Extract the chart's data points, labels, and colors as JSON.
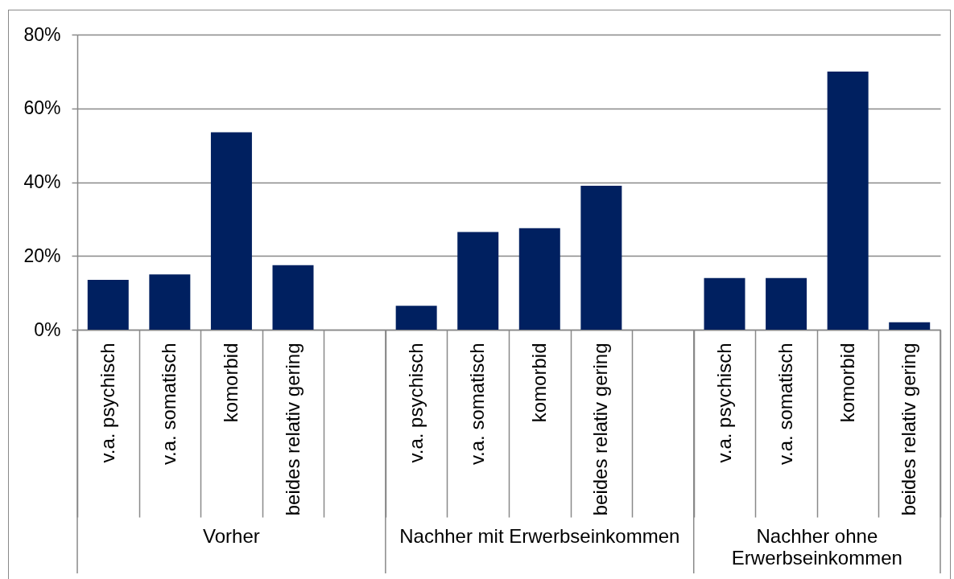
{
  "chart_data": {
    "type": "bar",
    "categories": [
      "v.a. psychisch",
      "v.a. somatisch",
      "komorbid",
      "beides relativ gering",
      null,
      "v.a. psychisch",
      "v.a. somatisch",
      "komorbid",
      "beides relativ gering",
      null,
      "v.a. psychisch",
      "v.a. somatisch",
      "komorbid",
      "beides relativ gering"
    ],
    "values": [
      13.5,
      15,
      53.5,
      17.5,
      null,
      6.5,
      26.5,
      27.5,
      39,
      null,
      14,
      14,
      70,
      2
    ],
    "color": "#002060",
    "ylim": [
      0,
      80
    ],
    "yticks": [
      {
        "value": 0,
        "label": "0%"
      },
      {
        "value": 20,
        "label": "20%"
      },
      {
        "value": 40,
        "label": "40%"
      },
      {
        "value": 60,
        "label": "60%"
      },
      {
        "value": 80,
        "label": "80%"
      }
    ],
    "grid": "y",
    "annotations": [
      "Vorher",
      "Nachher mit Erwerbseinkommen",
      "Nachher ohne Erwerbseinkommen"
    ]
  }
}
